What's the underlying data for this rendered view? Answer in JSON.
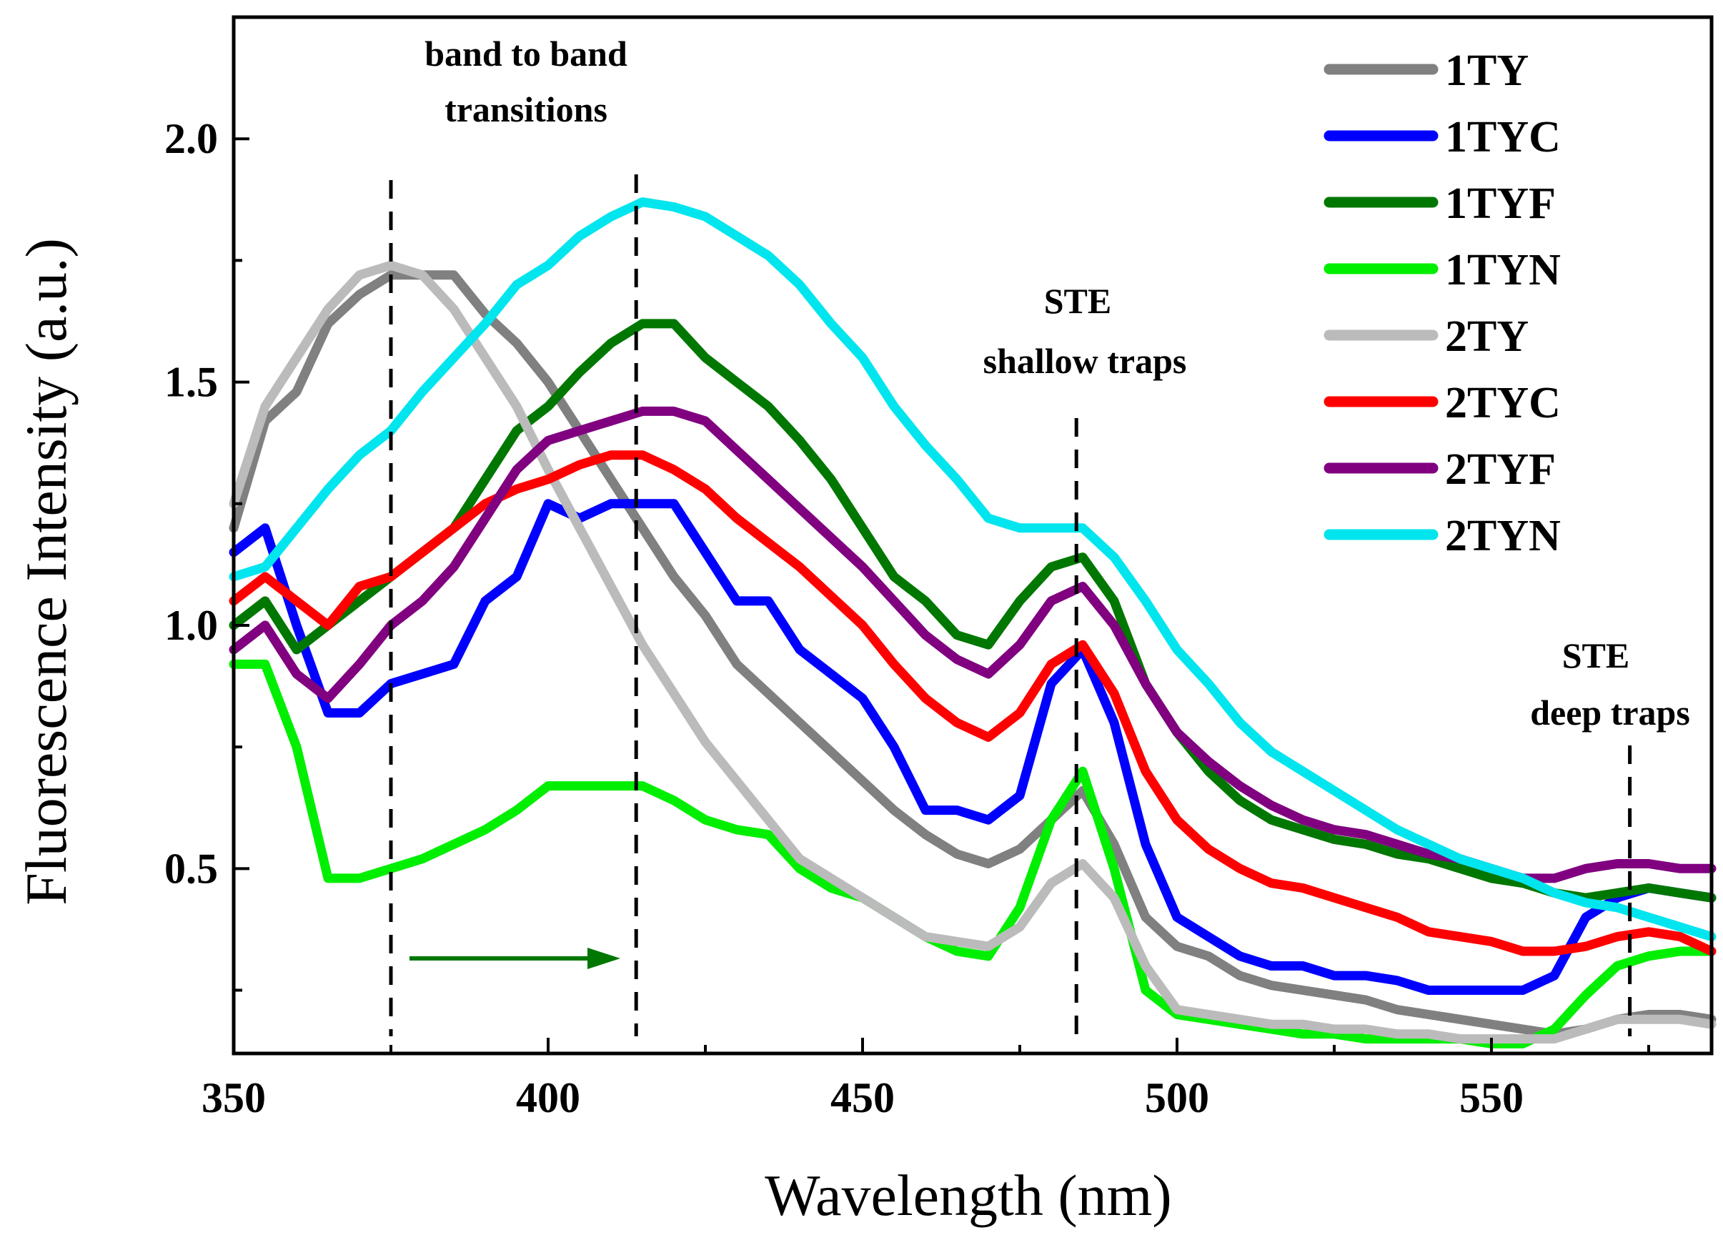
{
  "chart_data": {
    "type": "line",
    "title": "",
    "xlabel": "Wavelength (nm)",
    "ylabel": "Fluorescence Intensity (a.u.)",
    "xlim": [
      350,
      585
    ],
    "ylim": [
      0.12,
      2.25
    ],
    "xticks": [
      350,
      400,
      450,
      500,
      550
    ],
    "xtick_labels": [
      "350",
      "400",
      "450",
      "500",
      "550"
    ],
    "yticks": [
      0.5,
      1.0,
      1.5,
      2.0
    ],
    "ytick_labels": [
      "0.5",
      "1.0",
      "1.5",
      "2.0"
    ],
    "grid": false,
    "legend_position": "top-right",
    "x": [
      350,
      355,
      360,
      365,
      370,
      375,
      380,
      385,
      390,
      395,
      400,
      405,
      410,
      415,
      420,
      425,
      430,
      435,
      440,
      445,
      450,
      455,
      460,
      465,
      470,
      475,
      480,
      485,
      490,
      495,
      500,
      505,
      510,
      515,
      520,
      525,
      530,
      535,
      540,
      545,
      550,
      555,
      560,
      565,
      570,
      575,
      580,
      585
    ],
    "series": [
      {
        "name": "1TY",
        "color": "#808080",
        "values": [
          1.2,
          1.42,
          1.48,
          1.62,
          1.68,
          1.72,
          1.72,
          1.72,
          1.64,
          1.58,
          1.5,
          1.4,
          1.3,
          1.2,
          1.1,
          1.02,
          0.92,
          0.86,
          0.8,
          0.74,
          0.68,
          0.62,
          0.57,
          0.53,
          0.51,
          0.54,
          0.6,
          0.66,
          0.55,
          0.4,
          0.34,
          0.32,
          0.28,
          0.26,
          0.25,
          0.24,
          0.23,
          0.21,
          0.2,
          0.19,
          0.18,
          0.17,
          0.16,
          0.17,
          0.19,
          0.2,
          0.2,
          0.19
        ]
      },
      {
        "name": "1TYC",
        "color": "#0000ff",
        "values": [
          1.15,
          1.2,
          1.0,
          0.82,
          0.82,
          0.88,
          0.9,
          0.92,
          1.05,
          1.1,
          1.25,
          1.22,
          1.25,
          1.25,
          1.25,
          1.15,
          1.05,
          1.05,
          0.95,
          0.9,
          0.85,
          0.75,
          0.62,
          0.62,
          0.6,
          0.65,
          0.88,
          0.95,
          0.8,
          0.55,
          0.4,
          0.36,
          0.32,
          0.3,
          0.3,
          0.28,
          0.28,
          0.27,
          0.25,
          0.25,
          0.25,
          0.25,
          0.28,
          0.4,
          0.44,
          0.46,
          0.45,
          0.44
        ]
      },
      {
        "name": "1TYF",
        "color": "#007700",
        "values": [
          1.0,
          1.05,
          0.95,
          1.0,
          1.05,
          1.1,
          1.15,
          1.2,
          1.3,
          1.4,
          1.45,
          1.52,
          1.58,
          1.62,
          1.62,
          1.55,
          1.5,
          1.45,
          1.38,
          1.3,
          1.2,
          1.1,
          1.05,
          0.98,
          0.96,
          1.05,
          1.12,
          1.14,
          1.05,
          0.88,
          0.78,
          0.7,
          0.64,
          0.6,
          0.58,
          0.56,
          0.55,
          0.53,
          0.52,
          0.5,
          0.48,
          0.47,
          0.45,
          0.44,
          0.45,
          0.46,
          0.45,
          0.44
        ]
      },
      {
        "name": "1TYN",
        "color": "#00ee00",
        "values": [
          0.92,
          0.92,
          0.75,
          0.48,
          0.48,
          0.5,
          0.52,
          0.55,
          0.58,
          0.62,
          0.67,
          0.67,
          0.67,
          0.67,
          0.64,
          0.6,
          0.58,
          0.57,
          0.5,
          0.46,
          0.44,
          0.4,
          0.36,
          0.33,
          0.32,
          0.42,
          0.6,
          0.7,
          0.5,
          0.25,
          0.2,
          0.19,
          0.18,
          0.17,
          0.16,
          0.16,
          0.15,
          0.15,
          0.15,
          0.15,
          0.14,
          0.14,
          0.17,
          0.24,
          0.3,
          0.32,
          0.33,
          0.33
        ]
      },
      {
        "name": "2TY",
        "color": "#bbbbbb",
        "values": [
          1.25,
          1.45,
          1.55,
          1.65,
          1.72,
          1.74,
          1.72,
          1.65,
          1.55,
          1.45,
          1.32,
          1.2,
          1.08,
          0.96,
          0.86,
          0.76,
          0.68,
          0.6,
          0.52,
          0.48,
          0.44,
          0.4,
          0.36,
          0.35,
          0.34,
          0.38,
          0.47,
          0.51,
          0.44,
          0.3,
          0.21,
          0.2,
          0.19,
          0.18,
          0.18,
          0.17,
          0.17,
          0.16,
          0.16,
          0.15,
          0.15,
          0.15,
          0.15,
          0.17,
          0.19,
          0.19,
          0.19,
          0.18
        ]
      },
      {
        "name": "2TYC",
        "color": "#ff0000",
        "values": [
          1.05,
          1.1,
          1.05,
          1.0,
          1.08,
          1.1,
          1.15,
          1.2,
          1.25,
          1.28,
          1.3,
          1.33,
          1.35,
          1.35,
          1.32,
          1.28,
          1.22,
          1.17,
          1.12,
          1.06,
          1.0,
          0.92,
          0.85,
          0.8,
          0.77,
          0.82,
          0.92,
          0.96,
          0.86,
          0.7,
          0.6,
          0.54,
          0.5,
          0.47,
          0.46,
          0.44,
          0.42,
          0.4,
          0.37,
          0.36,
          0.35,
          0.33,
          0.33,
          0.34,
          0.36,
          0.37,
          0.36,
          0.33
        ]
      },
      {
        "name": "2TYF",
        "color": "#800080",
        "values": [
          0.95,
          1.0,
          0.9,
          0.85,
          0.92,
          1.0,
          1.05,
          1.12,
          1.22,
          1.32,
          1.38,
          1.4,
          1.42,
          1.44,
          1.44,
          1.42,
          1.36,
          1.3,
          1.24,
          1.18,
          1.12,
          1.05,
          0.98,
          0.93,
          0.9,
          0.96,
          1.05,
          1.08,
          1.0,
          0.88,
          0.78,
          0.72,
          0.67,
          0.63,
          0.6,
          0.58,
          0.57,
          0.55,
          0.53,
          0.52,
          0.5,
          0.48,
          0.48,
          0.5,
          0.51,
          0.51,
          0.5,
          0.5
        ]
      },
      {
        "name": "2TYN",
        "color": "#00e5ee",
        "values": [
          1.1,
          1.12,
          1.2,
          1.28,
          1.35,
          1.4,
          1.48,
          1.55,
          1.62,
          1.7,
          1.74,
          1.8,
          1.84,
          1.87,
          1.86,
          1.84,
          1.8,
          1.76,
          1.7,
          1.62,
          1.55,
          1.45,
          1.37,
          1.3,
          1.22,
          1.2,
          1.2,
          1.2,
          1.14,
          1.05,
          0.95,
          0.88,
          0.8,
          0.74,
          0.7,
          0.66,
          0.62,
          0.58,
          0.55,
          0.52,
          0.5,
          0.48,
          0.45,
          0.43,
          0.42,
          0.4,
          0.38,
          0.36
        ]
      }
    ],
    "vlines": [
      375,
      414,
      484,
      572
    ],
    "annotations": [
      {
        "lines": [
          "band to band",
          "transitions"
        ]
      },
      {
        "lines": [
          "STE",
          "shallow traps"
        ]
      },
      {
        "lines": [
          "STE",
          "deep traps"
        ]
      }
    ]
  }
}
